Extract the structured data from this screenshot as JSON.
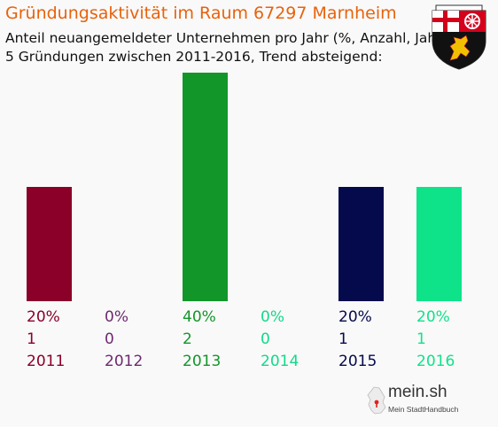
{
  "header": {
    "title": "Gründungsaktivität im Raum 67297 Marnheim",
    "subtitle_line1": "Anteil neuangemeldeter Unternehmen pro Jahr (%, Anzahl, Jahr)",
    "subtitle_line2": "5 Gründungen zwischen 2011-2016, Trend absteigend:"
  },
  "logo": {
    "name": "mein.sh",
    "tagline": "Mein StadtHandbuch"
  },
  "icons": {
    "coat_of_arms": "rhineland-palatinate-coat-of-arms-icon",
    "logo_map": "germany-map-icon"
  },
  "chart_data": {
    "type": "bar",
    "categories": [
      "2011",
      "2012",
      "2013",
      "2014",
      "2015",
      "2016"
    ],
    "values": [
      20,
      0,
      40,
      0,
      20,
      20
    ],
    "counts": [
      1,
      0,
      2,
      0,
      1,
      1
    ],
    "percent_labels": [
      "20%",
      "0%",
      "40%",
      "0%",
      "20%",
      "20%"
    ],
    "colors": [
      "#8b0029",
      "#6e2a6e",
      "#12962a",
      "#12d98a",
      "#050a4d",
      "#0fe38a"
    ],
    "ylim": [
      0,
      40
    ],
    "grid": false,
    "legend": "none"
  }
}
